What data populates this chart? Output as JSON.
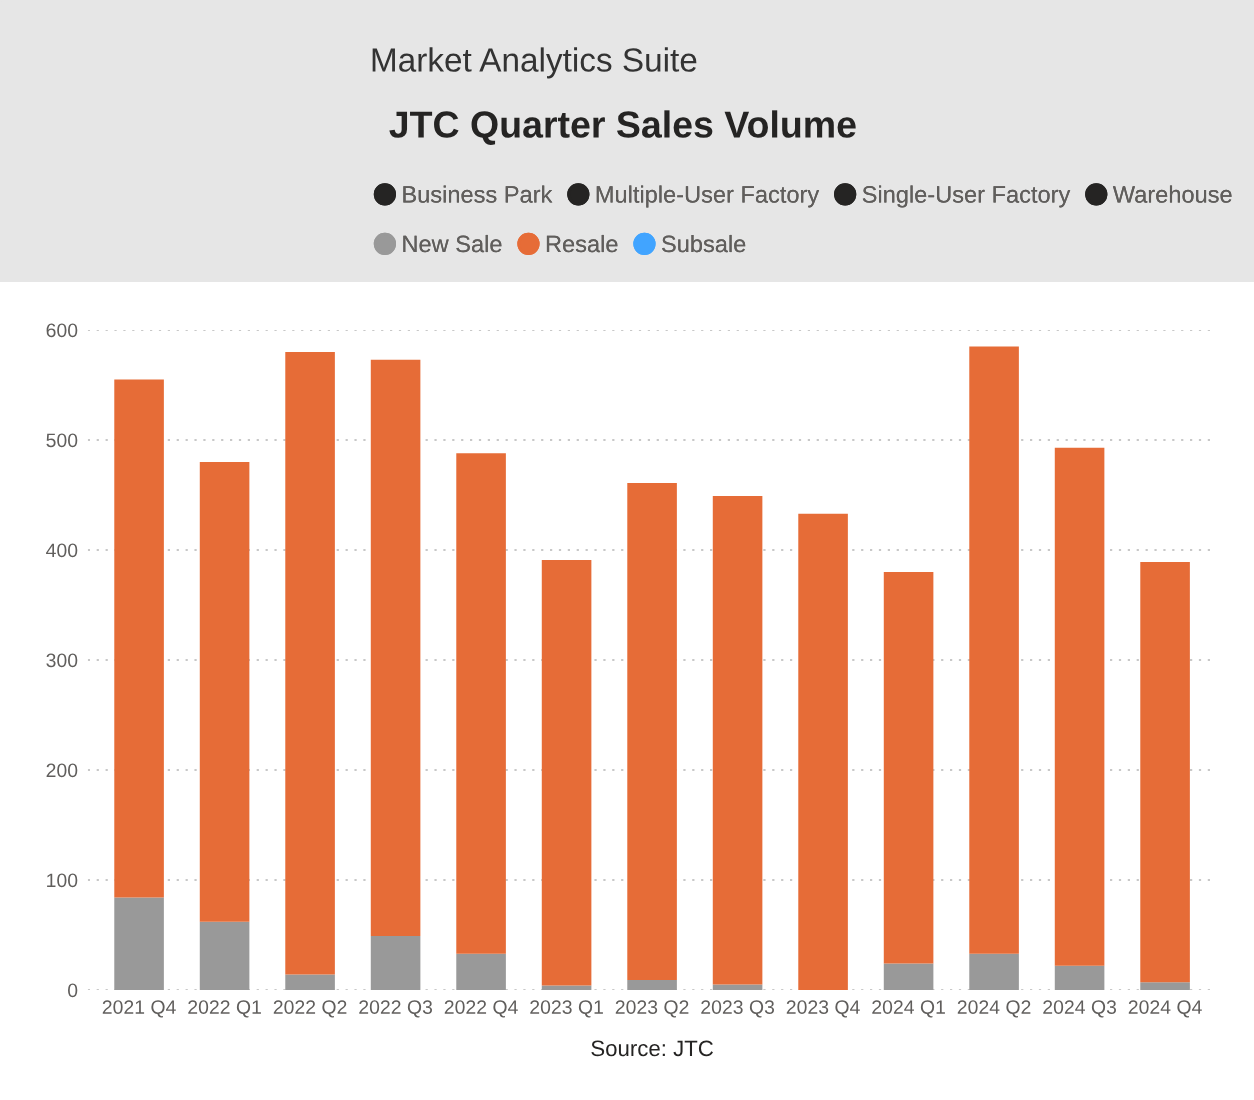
{
  "chart_data": {
    "type": "bar",
    "subtitle": "Market Analytics Suite",
    "title": "JTC Quarter Sales Volume",
    "categories": [
      "2021 Q4",
      "2022 Q1",
      "2022 Q2",
      "2022 Q3",
      "2022 Q4",
      "2023 Q1",
      "2023 Q2",
      "2023 Q3",
      "2023 Q4",
      "2024 Q1",
      "2024 Q2",
      "2024 Q3",
      "2024 Q4"
    ],
    "stacked": true,
    "series": [
      {
        "name": "Business Park",
        "color": "#252423",
        "values": [
          null,
          null,
          null,
          null,
          null,
          null,
          null,
          null,
          null,
          null,
          null,
          null,
          null
        ]
      },
      {
        "name": "Multiple-User Factory",
        "color": "#252423",
        "values": [
          null,
          null,
          null,
          null,
          null,
          null,
          null,
          null,
          null,
          null,
          null,
          null,
          null
        ]
      },
      {
        "name": "Single-User Factory",
        "color": "#252423",
        "values": [
          null,
          null,
          null,
          null,
          null,
          null,
          null,
          null,
          null,
          null,
          null,
          null,
          null
        ]
      },
      {
        "name": "Warehouse",
        "color": "#252423",
        "values": [
          null,
          null,
          null,
          null,
          null,
          null,
          null,
          null,
          null,
          null,
          null,
          null,
          null
        ]
      },
      {
        "name": "New Sale",
        "color": "#999999",
        "values": [
          84,
          62,
          14,
          49,
          33,
          4,
          9,
          5,
          null,
          24,
          33,
          22,
          7
        ]
      },
      {
        "name": "Resale",
        "color": "#e66c37",
        "values": [
          471,
          418,
          566,
          524,
          455,
          387,
          452,
          444,
          433,
          356,
          552,
          471,
          382
        ]
      },
      {
        "name": "Subsale",
        "color": "#41a4ff",
        "values": [
          null,
          null,
          null,
          null,
          null,
          null,
          null,
          null,
          null,
          null,
          null,
          null,
          null
        ]
      }
    ],
    "ylim": [
      0,
      600
    ],
    "yticks": [
      0,
      100,
      200,
      300,
      400,
      500,
      600
    ],
    "grid": "y",
    "legend": "top",
    "annotations": [
      "Source: JTC"
    ]
  }
}
